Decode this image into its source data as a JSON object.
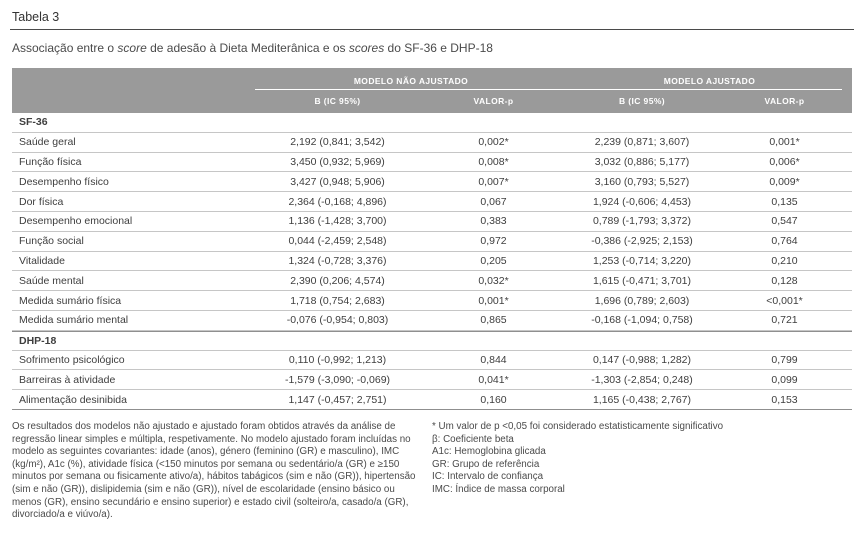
{
  "page": {
    "table_label": "Tabela 3",
    "subtitle_parts": [
      {
        "text": "Associação entre o ",
        "italic": false
      },
      {
        "text": "score",
        "italic": true
      },
      {
        "text": " de adesão à Dieta Mediterânica e os ",
        "italic": false
      },
      {
        "text": "scores",
        "italic": true
      },
      {
        "text": " do SF-36 e DHP-18",
        "italic": false
      }
    ]
  },
  "colors": {
    "header_bg": "#9a9a9a",
    "header_text": "#ffffff",
    "body_text": "#3e3e3e",
    "rule_dark": "#8f8f8f",
    "rule_light": "#c6c6c6"
  },
  "table": {
    "group_headers": [
      "MODELO NÃO AJUSTADO",
      "MODELO AJUSTADO"
    ],
    "column_headers": [
      "B (IC 95%)",
      "VALOR-p",
      "B (IC 95%)",
      "VALOR-p"
    ],
    "sections": [
      {
        "name": "SF-36",
        "rows": [
          {
            "label": "Saúde geral",
            "values": [
              "2,192 (0,841; 3,542)",
              "0,002*",
              "2,239 (0,871; 3,607)",
              "0,001*"
            ]
          },
          {
            "label": "Função física",
            "values": [
              "3,450 (0,932; 5,969)",
              "0,008*",
              "3,032 (0,886; 5,177)",
              "0,006*"
            ]
          },
          {
            "label": "Desempenho físico",
            "values": [
              "3,427 (0,948; 5,906)",
              "0,007*",
              "3,160 (0,793; 5,527)",
              "0,009*"
            ]
          },
          {
            "label": "Dor física",
            "values": [
              "2,364 (-0,168; 4,896)",
              "0,067",
              "1,924 (-0,606; 4,453)",
              "0,135"
            ]
          },
          {
            "label": "Desempenho emocional",
            "values": [
              "1,136 (-1,428; 3,700)",
              "0,383",
              "0,789 (-1,793; 3,372)",
              "0,547"
            ]
          },
          {
            "label": "Função social",
            "values": [
              "0,044 (-2,459; 2,548)",
              "0,972",
              "-0,386 (-2,925; 2,153)",
              "0,764"
            ]
          },
          {
            "label": "Vitalidade",
            "values": [
              "1,324 (-0,728; 3,376)",
              "0,205",
              "1,253 (-0,714; 3,220)",
              "0,210"
            ]
          },
          {
            "label": "Saúde mental",
            "values": [
              "2,390 (0,206; 4,574)",
              "0,032*",
              "1,615 (-0,471; 3,701)",
              "0,128"
            ]
          },
          {
            "label": "Medida sumário física",
            "values": [
              "1,718 (0,754; 2,683)",
              "0,001*",
              "1,696 (0,789; 2,603)",
              "<0,001*"
            ]
          },
          {
            "label": "Medida sumário mental",
            "values": [
              "-0,076 (-0,954; 0,803)",
              "0,865",
              "-0,168 (-1,094; 0,758)",
              "0,721"
            ]
          }
        ]
      },
      {
        "name": "DHP-18",
        "rows": [
          {
            "label": "Sofrimento psicológico",
            "values": [
              "0,110 (-0,992; 1,213)",
              "0,844",
              "0,147 (-0,988; 1,282)",
              "0,799"
            ]
          },
          {
            "label": "Barreiras à atividade",
            "values": [
              "-1,579 (-3,090; -0,069)",
              "0,041*",
              "-1,303 (-2,854; 0,248)",
              "0,099"
            ]
          },
          {
            "label": "Alimentação desinibida",
            "values": [
              "1,147 (-0,457; 2,751)",
              "0,160",
              "1,165 (-0,438; 2,767)",
              "0,153"
            ]
          }
        ]
      }
    ]
  },
  "footnotes": {
    "left": "Os resultados dos modelos não ajustado e ajustado foram obtidos através da análise de regressão linear simples e múltipla, respetivamente. No modelo ajustado foram incluídas no modelo as seguintes covariantes: idade (anos), género (feminino (GR) e masculino), IMC (kg/m²), A1c (%), atividade física (<150 minutos por semana ou sedentário/a (GR) e ≥150 minutos por semana ou fisicamente ativo/a), hábitos tabágicos (sim e não (GR)), hipertensão (sim e não (GR)), dislipidemia (sim e não (GR)), nível de escolaridade (ensino básico ou menos (GR), ensino secundário e ensino superior) e estado civil (solteiro/a, casado/a (GR), divorciado/a e viúvo/a).",
    "right": [
      "* Um valor de p <0,05 foi considerado estatisticamente significativo",
      "β: Coeficiente beta",
      "A1c: Hemoglobina glicada",
      "GR: Grupo de referência",
      "IC: Intervalo de confiança",
      "IMC: Índice de massa corporal"
    ]
  }
}
